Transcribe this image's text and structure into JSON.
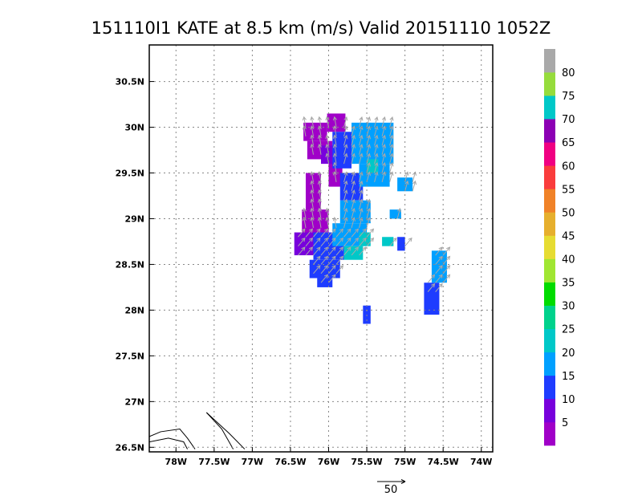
{
  "chart_data": {
    "type": "heatmap",
    "title": "151110I1 KATE at 8.5 km (m/s) Valid 20151110 1052Z",
    "xlim": [
      -78.35,
      -73.85
    ],
    "ylim": [
      26.45,
      30.9
    ],
    "x_ticks": [
      {
        "value": -78.0,
        "label": "78W"
      },
      {
        "value": -77.5,
        "label": "77.5W"
      },
      {
        "value": -77.0,
        "label": "77W"
      },
      {
        "value": -76.5,
        "label": "76.5W"
      },
      {
        "value": -76.0,
        "label": "76W"
      },
      {
        "value": -75.5,
        "label": "75.5W"
      },
      {
        "value": -75.0,
        "label": "75W"
      },
      {
        "value": -74.5,
        "label": "74.5W"
      },
      {
        "value": -74.0,
        "label": "74W"
      }
    ],
    "y_ticks": [
      {
        "value": 26.5,
        "label": "26.5N"
      },
      {
        "value": 27.0,
        "label": "27N"
      },
      {
        "value": 27.5,
        "label": "27.5N"
      },
      {
        "value": 28.0,
        "label": "28N"
      },
      {
        "value": 28.5,
        "label": "28.5N"
      },
      {
        "value": 29.0,
        "label": "29N"
      },
      {
        "value": 29.5,
        "label": "29.5N"
      },
      {
        "value": 30.0,
        "label": "30N"
      },
      {
        "value": 30.5,
        "label": "30.5N"
      }
    ],
    "grid": true,
    "colorbar": {
      "unit": "m/s",
      "labels": [
        "5",
        "10",
        "15",
        "20",
        "25",
        "30",
        "35",
        "40",
        "45",
        "50",
        "55",
        "60",
        "65",
        "70",
        "75",
        "80"
      ],
      "colors": [
        "#a000c8",
        "#7800dc",
        "#1e3cff",
        "#00a0ff",
        "#00c8c8",
        "#00d28c",
        "#00dc00",
        "#a0e632",
        "#e6dc32",
        "#e6af2d",
        "#f08228",
        "#fa3c3c",
        "#f00082",
        "#8c00b4",
        "#00c8c8",
        "#96dc3c",
        "#a9a9a9"
      ]
    },
    "wind_cells": [
      {
        "x0": -76.33,
        "x1": -76.02,
        "y0": 29.85,
        "y1": 30.05,
        "speed": 5
      },
      {
        "x0": -76.02,
        "x1": -75.78,
        "y0": 29.95,
        "y1": 30.15,
        "speed": 5
      },
      {
        "x0": -76.28,
        "x1": -75.95,
        "y0": 29.65,
        "y1": 29.85,
        "speed": 5
      },
      {
        "x0": -76.3,
        "x1": -76.1,
        "y0": 29.1,
        "y1": 29.5,
        "speed": 5
      },
      {
        "x0": -76.35,
        "x1": -76.0,
        "y0": 28.8,
        "y1": 29.1,
        "speed": 5
      },
      {
        "x0": -76.0,
        "x1": -75.82,
        "y0": 29.35,
        "y1": 29.65,
        "speed": 5
      },
      {
        "x0": -76.45,
        "x1": -76.2,
        "y0": 28.6,
        "y1": 28.85,
        "speed": 10
      },
      {
        "x0": -76.1,
        "x1": -75.88,
        "y0": 29.6,
        "y1": 29.8,
        "speed": 10
      },
      {
        "x0": -75.95,
        "x1": -75.7,
        "y0": 29.55,
        "y1": 29.95,
        "speed": 15
      },
      {
        "x0": -75.85,
        "x1": -75.55,
        "y0": 29.2,
        "y1": 29.5,
        "speed": 15
      },
      {
        "x0": -76.2,
        "x1": -75.8,
        "y0": 28.55,
        "y1": 28.85,
        "speed": 15
      },
      {
        "x0": -76.25,
        "x1": -75.85,
        "y0": 28.35,
        "y1": 28.55,
        "speed": 15
      },
      {
        "x0": -76.15,
        "x1": -75.95,
        "y0": 28.25,
        "y1": 28.35,
        "speed": 15
      },
      {
        "x0": -75.55,
        "x1": -75.45,
        "y0": 27.85,
        "y1": 28.05,
        "speed": 15
      },
      {
        "x0": -74.75,
        "x1": -74.55,
        "y0": 27.95,
        "y1": 28.3,
        "speed": 15
      },
      {
        "x0": -75.1,
        "x1": -75.0,
        "y0": 28.65,
        "y1": 28.8,
        "speed": 15
      },
      {
        "x0": -75.7,
        "x1": -75.15,
        "y0": 29.6,
        "y1": 30.05,
        "speed": 20
      },
      {
        "x0": -75.6,
        "x1": -75.2,
        "y0": 29.35,
        "y1": 29.6,
        "speed": 20
      },
      {
        "x0": -75.85,
        "x1": -75.45,
        "y0": 28.95,
        "y1": 29.2,
        "speed": 20
      },
      {
        "x0": -75.95,
        "x1": -75.5,
        "y0": 28.7,
        "y1": 28.95,
        "speed": 20
      },
      {
        "x0": -75.1,
        "x1": -74.9,
        "y0": 29.3,
        "y1": 29.45,
        "speed": 20
      },
      {
        "x0": -75.2,
        "x1": -75.05,
        "y0": 29.0,
        "y1": 29.1,
        "speed": 20
      },
      {
        "x0": -74.65,
        "x1": -74.45,
        "y0": 28.3,
        "y1": 28.65,
        "speed": 20
      },
      {
        "x0": -75.6,
        "x1": -75.45,
        "y0": 28.7,
        "y1": 28.85,
        "speed": 25
      },
      {
        "x0": -75.8,
        "x1": -75.55,
        "y0": 28.55,
        "y1": 28.7,
        "speed": 25
      },
      {
        "x0": -75.5,
        "x1": -75.35,
        "y0": 29.5,
        "y1": 29.65,
        "speed": 25
      },
      {
        "x0": -75.3,
        "x1": -75.15,
        "y0": 28.7,
        "y1": 28.8,
        "speed": 25
      }
    ],
    "wind_vectors": {
      "reference_length_label": "50",
      "direction": "south-westerly flow turning cyclonically, arrows point north to north-east"
    },
    "coastline": true
  }
}
